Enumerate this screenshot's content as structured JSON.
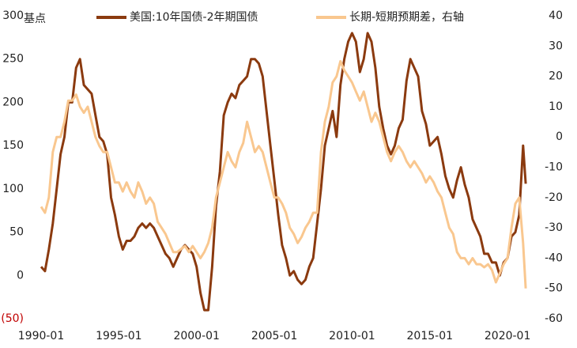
{
  "chart_data": {
    "type": "line",
    "y_label": "基点",
    "x": [
      "1990-01",
      "1990-04",
      "1990-07",
      "1990-10",
      "1991-01",
      "1991-04",
      "1991-07",
      "1991-10",
      "1992-01",
      "1992-04",
      "1992-07",
      "1992-10",
      "1993-01",
      "1993-04",
      "1993-07",
      "1993-10",
      "1994-01",
      "1994-04",
      "1994-07",
      "1994-10",
      "1995-01",
      "1995-04",
      "1995-07",
      "1995-10",
      "1996-01",
      "1996-04",
      "1996-07",
      "1996-10",
      "1997-01",
      "1997-04",
      "1997-07",
      "1997-10",
      "1998-01",
      "1998-04",
      "1998-07",
      "1998-10",
      "1999-01",
      "1999-04",
      "1999-07",
      "1999-10",
      "2000-01",
      "2000-04",
      "2000-07",
      "2000-10",
      "2001-01",
      "2001-04",
      "2001-07",
      "2001-10",
      "2002-01",
      "2002-04",
      "2002-07",
      "2002-10",
      "2003-01",
      "2003-04",
      "2003-07",
      "2003-10",
      "2004-01",
      "2004-04",
      "2004-07",
      "2004-10",
      "2005-01",
      "2005-04",
      "2005-07",
      "2005-10",
      "2006-01",
      "2006-04",
      "2006-07",
      "2006-10",
      "2007-01",
      "2007-04",
      "2007-07",
      "2007-10",
      "2008-01",
      "2008-04",
      "2008-07",
      "2008-10",
      "2009-01",
      "2009-04",
      "2009-07",
      "2009-10",
      "2010-01",
      "2010-04",
      "2010-07",
      "2010-10",
      "2011-01",
      "2011-04",
      "2011-07",
      "2011-10",
      "2012-01",
      "2012-04",
      "2012-07",
      "2012-10",
      "2013-01",
      "2013-04",
      "2013-07",
      "2013-10",
      "2014-01",
      "2014-04",
      "2014-07",
      "2014-10",
      "2015-01",
      "2015-04",
      "2015-07",
      "2015-10",
      "2016-01",
      "2016-04",
      "2016-07",
      "2016-10",
      "2017-01",
      "2017-04",
      "2017-07",
      "2017-10",
      "2018-01",
      "2018-04",
      "2018-07",
      "2018-10",
      "2019-01",
      "2019-04",
      "2019-07",
      "2019-10",
      "2020-01",
      "2020-04",
      "2020-07",
      "2020-10",
      "2021-01",
      "2021-03"
    ],
    "series": [
      {
        "name": "美国:10年国债-2年期国债",
        "color": "#8b3a0f",
        "axis": "y",
        "values": [
          10,
          5,
          30,
          60,
          100,
          140,
          160,
          200,
          200,
          240,
          250,
          220,
          215,
          210,
          185,
          160,
          155,
          140,
          90,
          70,
          45,
          30,
          40,
          40,
          45,
          55,
          60,
          55,
          60,
          55,
          45,
          35,
          25,
          20,
          10,
          20,
          30,
          35,
          30,
          25,
          10,
          -20,
          -40,
          -40,
          10,
          80,
          120,
          185,
          200,
          210,
          205,
          220,
          225,
          230,
          250,
          250,
          245,
          230,
          190,
          150,
          110,
          70,
          35,
          20,
          0,
          5,
          -5,
          -10,
          -5,
          10,
          20,
          60,
          100,
          150,
          170,
          190,
          160,
          220,
          250,
          270,
          280,
          270,
          235,
          250,
          280,
          270,
          240,
          195,
          170,
          150,
          140,
          150,
          170,
          180,
          225,
          250,
          240,
          230,
          190,
          175,
          150,
          155,
          160,
          140,
          115,
          100,
          90,
          110,
          125,
          105,
          90,
          65,
          55,
          45,
          25,
          25,
          15,
          15,
          0,
          15,
          20,
          45,
          50,
          70,
          150,
          106
        ]
      },
      {
        "name": "长期-短期预期差，右轴",
        "color": "#f9c78f",
        "axis": "y2",
        "values": [
          -23,
          -25,
          -20,
          -5,
          0,
          0,
          5,
          12,
          12,
          14,
          10,
          8,
          10,
          5,
          0,
          -3,
          -5,
          -5,
          -10,
          -15,
          -15,
          -18,
          -15,
          -18,
          -20,
          -15,
          -18,
          -22,
          -20,
          -22,
          -28,
          -30,
          -32,
          -35,
          -38,
          -38,
          -37,
          -36,
          -38,
          -36,
          -38,
          -40,
          -38,
          -35,
          -30,
          -20,
          -15,
          -10,
          -5,
          -8,
          -10,
          -5,
          -2,
          5,
          0,
          -5,
          -3,
          -5,
          -10,
          -15,
          -20,
          -20,
          -22,
          -25,
          -30,
          -32,
          -35,
          -33,
          -30,
          -28,
          -25,
          -25,
          -5,
          5,
          10,
          18,
          20,
          25,
          22,
          20,
          18,
          15,
          12,
          15,
          10,
          5,
          8,
          5,
          0,
          -5,
          -8,
          -5,
          -3,
          -5,
          -8,
          -10,
          -8,
          -10,
          -12,
          -15,
          -13,
          -15,
          -18,
          -20,
          -25,
          -30,
          -32,
          -38,
          -40,
          -40,
          -42,
          -40,
          -42,
          -42,
          -43,
          -42,
          -44,
          -48,
          -45,
          -42,
          -40,
          -30,
          -22,
          -20,
          -35,
          -50
        ]
      }
    ],
    "xlim": [
      "1990-01",
      "2021-06"
    ],
    "xticks": [
      "1990-01",
      "1995-01",
      "2000-01",
      "2005-01",
      "2010-01",
      "2015-01",
      "2020-01"
    ],
    "ylim": [
      -50,
      300
    ],
    "yticks": [
      {
        "value": -50,
        "label": "(50)"
      },
      0,
      50,
      100,
      150,
      200,
      250,
      300
    ],
    "y2lim": [
      -60,
      40
    ],
    "y2ticks": [
      -60,
      -50,
      -40,
      -30,
      -20,
      -10,
      0,
      10,
      20,
      30,
      40
    ],
    "grid": false,
    "legend": "top"
  }
}
